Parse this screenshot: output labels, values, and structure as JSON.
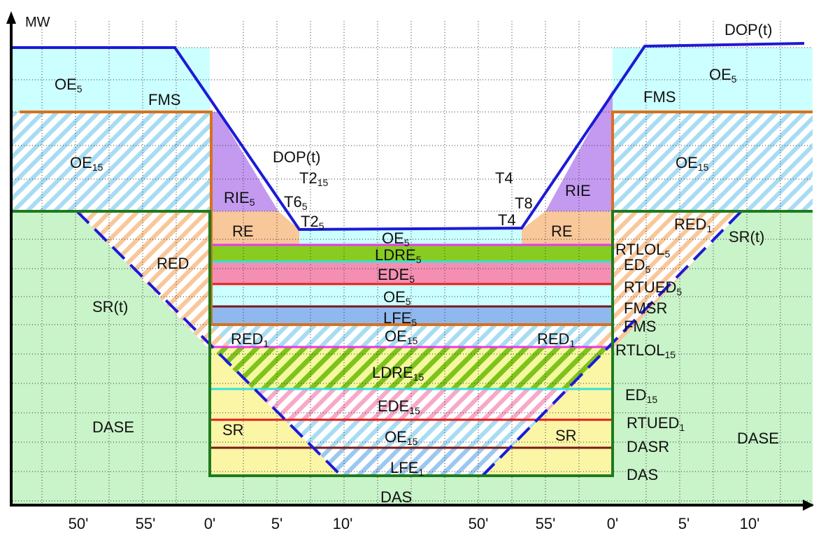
{
  "axis": {
    "y_label": "MW"
  },
  "time_ticks": [
    "50'",
    "55'",
    "0'",
    "5'",
    "10'",
    "50'",
    "55'",
    "0'",
    "5'",
    "10'"
  ],
  "colors": {
    "dop_line": "#1b1bd6",
    "orange_line": "#d9711c",
    "green_line": "#1e7a1e",
    "oe_fill": "#ccffff",
    "hatch_blue": "#a8dcf2",
    "rie_fill": "#c39af0",
    "re_fill": "#f8c79a",
    "sr_fill": "#c9f3c9",
    "yellow_fill": "#fbf6a6",
    "ldre_fill": "#88cc22",
    "ede_fill": "#f48fb3",
    "lfe_fill": "#8fb8ef",
    "magenta_line": "#e83ae8",
    "cyan_line": "#33e0e0",
    "red_line": "#e81c1c",
    "maroon_line": "#7a1a1a"
  },
  "labels": {
    "oe5_left": {
      "main": "OE",
      "sub": "5"
    },
    "fms_left": "FMS",
    "oe15_left": {
      "main": "OE",
      "sub": "15"
    },
    "dop_top_right": "DOP(t)",
    "oe5_right": {
      "main": "OE",
      "sub": "5"
    },
    "fms_right": "FMS",
    "oe15_right": {
      "main": "OE",
      "sub": "15"
    },
    "dop_mid": "DOP(t)",
    "t2_15": {
      "main": "T2",
      "sub": "15"
    },
    "rie5": {
      "main": "RIE",
      "sub": "5"
    },
    "t6_5": {
      "main": "T6",
      "sub": "5"
    },
    "t2_5": {
      "main": "T2",
      "sub": "5"
    },
    "t4_top": "T4",
    "t8": "T8",
    "t4_bottom": "T4",
    "rie_right": "RIE",
    "re_left": "RE",
    "re_right": "RE",
    "red_left": "RED",
    "red1_right_top": {
      "main": "RED",
      "sub": "1"
    },
    "sr_t_left": "SR(t)",
    "sr_t_right": "SR(t)",
    "oe5_center": {
      "main": "OE",
      "sub": "5"
    },
    "ldre5": {
      "main": "LDRE",
      "sub": "5"
    },
    "ede5": {
      "main": "EDE",
      "sub": "5"
    },
    "oe5_center2": {
      "main": "OE",
      "sub": "5"
    },
    "lfe5": {
      "main": "LFE",
      "sub": "5"
    },
    "red1_left": {
      "main": "RED",
      "sub": "1"
    },
    "oe15_center": {
      "main": "OE",
      "sub": "15"
    },
    "red1_right": {
      "main": "RED",
      "sub": "1"
    },
    "ldre15": {
      "main": "LDRE",
      "sub": "15"
    },
    "ede15": {
      "main": "EDE",
      "sub": "15"
    },
    "oe15_center2": {
      "main": "OE",
      "sub": "15"
    },
    "lfe1": {
      "main": "LFE",
      "sub": "1"
    },
    "das_bottom": "DAS",
    "sr_left": "SR",
    "sr_right": "SR",
    "dase_left": "DASE",
    "dase_right": "DASE",
    "rtlol5": {
      "main": "RTLOL",
      "sub": "5"
    },
    "ed5": {
      "main": "ED",
      "sub": "5"
    },
    "rtued5": {
      "main": "RTUED",
      "sub": "5"
    },
    "fmsr": "FMSR",
    "fms_right2": "FMS",
    "rtlol15": {
      "main": "RTLOL",
      "sub": "15"
    },
    "ed15": {
      "main": "ED",
      "sub": "15"
    },
    "rtued1": {
      "main": "RTUED",
      "sub": "1"
    },
    "dasr": "DASR",
    "das_right": "DAS"
  }
}
